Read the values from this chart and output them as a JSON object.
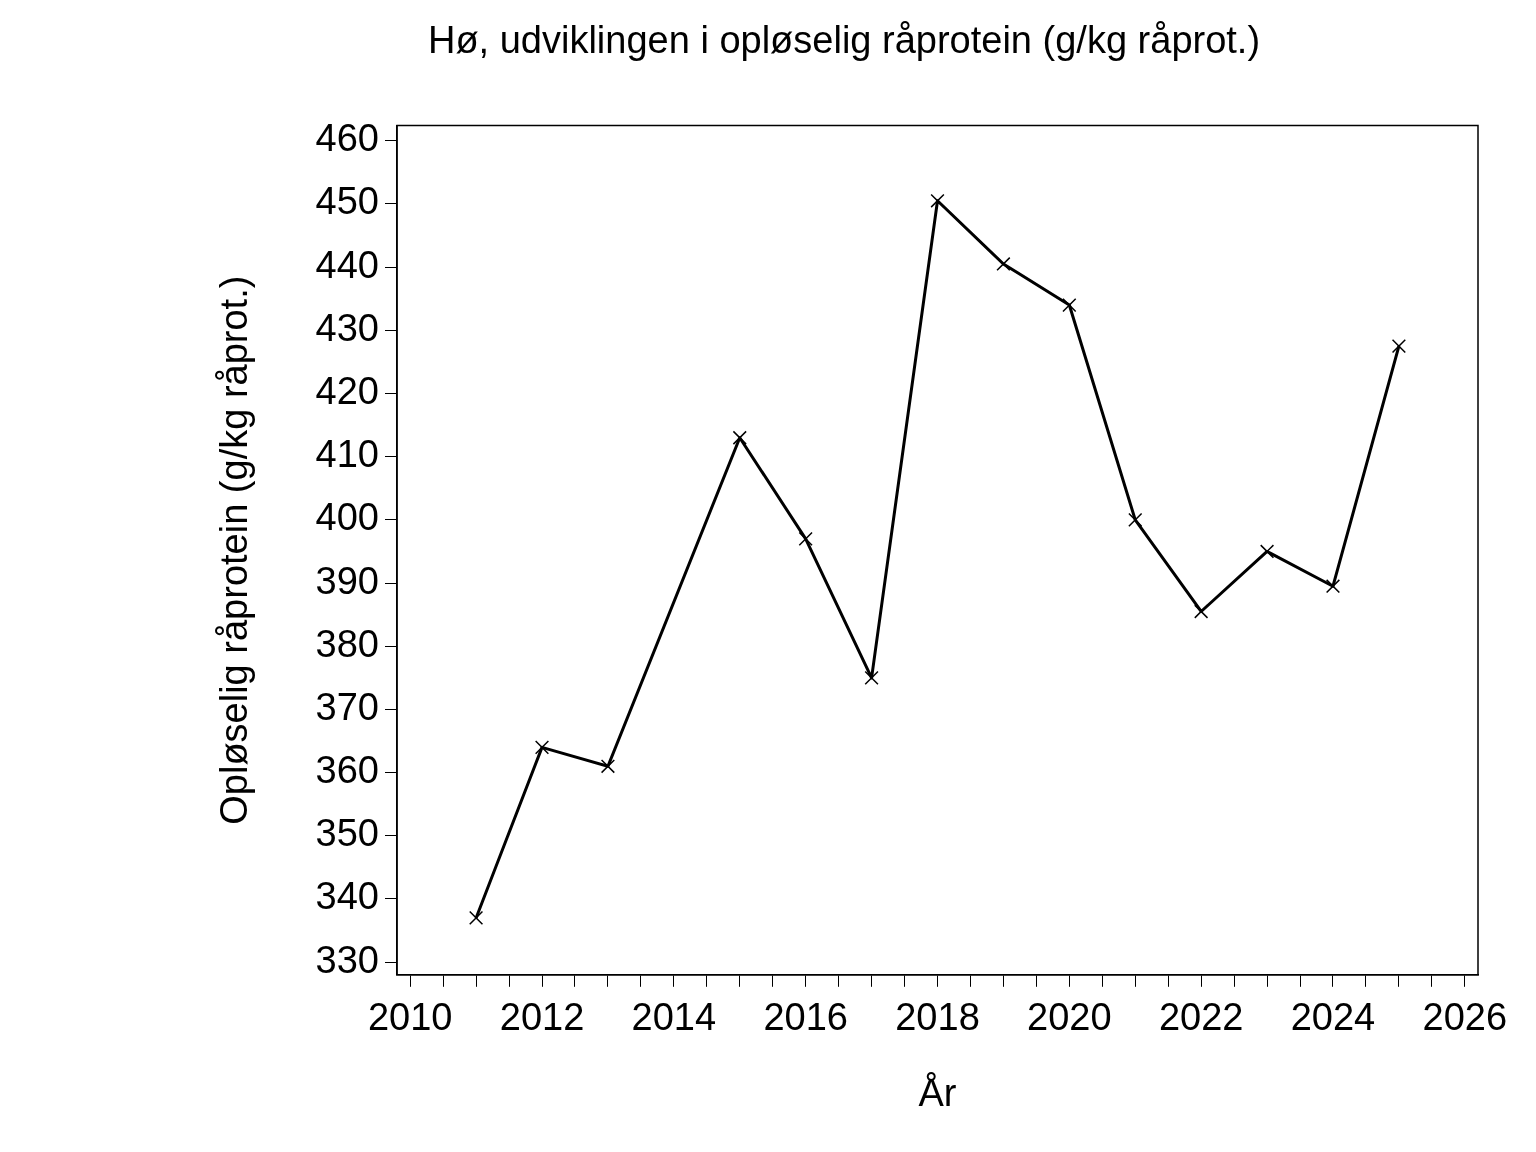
{
  "chart_data": {
    "type": "line",
    "title": "Hø, udviklingen i opløselig råprotein (g/kg råprot.)",
    "xlabel": "År",
    "ylabel": "Opløselig råprotein (g/kg råprot.)",
    "x": [
      2011,
      2012,
      2013,
      2015,
      2016,
      2017,
      2018,
      2019,
      2020,
      2021,
      2022,
      2023,
      2024,
      2025
    ],
    "series": [
      {
        "color": "#000000",
        "values": [
          337,
          364,
          361,
          413,
          397,
          375,
          450.5,
          440.5,
          434,
          400,
          385.5,
          395,
          389.5,
          427.5
        ]
      }
    ],
    "xlim": [
      2009.8,
      2026.2
    ],
    "xticks": [
      2010,
      {
        "value": 2010.5,
        "label": null
      },
      {
        "value": 2011,
        "label": null
      },
      {
        "value": 2011.5,
        "label": null
      },
      2012,
      {
        "value": 2012.5,
        "label": null
      },
      {
        "value": 2013,
        "label": null
      },
      {
        "value": 2013.5,
        "label": null
      },
      2014,
      {
        "value": 2014.5,
        "label": null
      },
      {
        "value": 2015,
        "label": null
      },
      {
        "value": 2015.5,
        "label": null
      },
      2016,
      {
        "value": 2016.5,
        "label": null
      },
      {
        "value": 2017,
        "label": null
      },
      {
        "value": 2017.5,
        "label": null
      },
      2018,
      {
        "value": 2018.5,
        "label": null
      },
      {
        "value": 2019,
        "label": null
      },
      {
        "value": 2019.5,
        "label": null
      },
      2020,
      {
        "value": 2020.5,
        "label": null
      },
      {
        "value": 2021,
        "label": null
      },
      {
        "value": 2021.5,
        "label": null
      },
      2022,
      {
        "value": 2022.5,
        "label": null
      },
      {
        "value": 2023,
        "label": null
      },
      {
        "value": 2023.5,
        "label": null
      },
      2024,
      {
        "value": 2024.5,
        "label": null
      },
      {
        "value": 2025,
        "label": null
      },
      {
        "value": 2025.5,
        "label": null
      },
      2026
    ],
    "ylim": [
      328,
      462.4
    ],
    "yticks": [
      330,
      340,
      350,
      360,
      370,
      380,
      390,
      400,
      410,
      420,
      430,
      440,
      450,
      460
    ],
    "grid": false,
    "legend": false,
    "marker": "cross",
    "line_style": "solid"
  }
}
